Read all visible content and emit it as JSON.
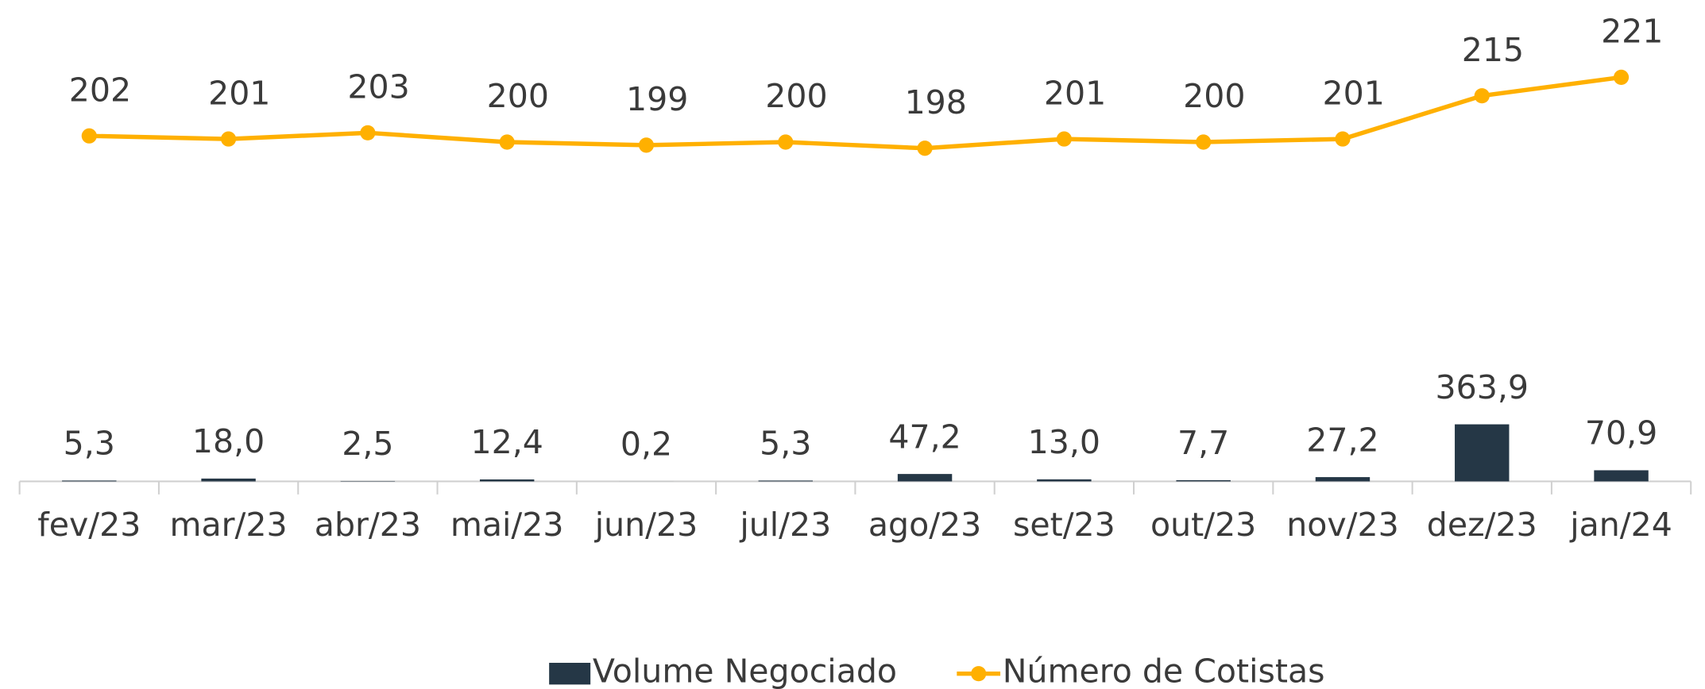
{
  "chart_data": {
    "type": "bar",
    "categories": [
      "fev/23",
      "mar/23",
      "abr/23",
      "mai/23",
      "jun/23",
      "jul/23",
      "ago/23",
      "set/23",
      "out/23",
      "nov/23",
      "dez/23",
      "jan/24"
    ],
    "series": [
      {
        "name": "Volume Negociado",
        "type": "bar",
        "color": "#253746",
        "values": [
          5.3,
          18.0,
          2.5,
          12.4,
          0.2,
          5.3,
          47.2,
          13.0,
          7.7,
          27.2,
          363.9,
          70.9
        ],
        "value_labels": [
          "5,3",
          "18,0",
          "2,5",
          "12,4",
          "0,2",
          "5,3",
          "47,2",
          "13,0",
          "7,7",
          "27,2",
          "363,9",
          "70,9"
        ]
      },
      {
        "name": "Número de Cotistas",
        "type": "line",
        "axis": "y2",
        "color": "#FFB000",
        "values": [
          202,
          201,
          203,
          200,
          199,
          200,
          198,
          201,
          200,
          201,
          215,
          221
        ]
      }
    ],
    "ylim": [
      0,
      3000
    ],
    "y2lim": [
      90,
      242.5
    ],
    "legend": "bottom"
  }
}
